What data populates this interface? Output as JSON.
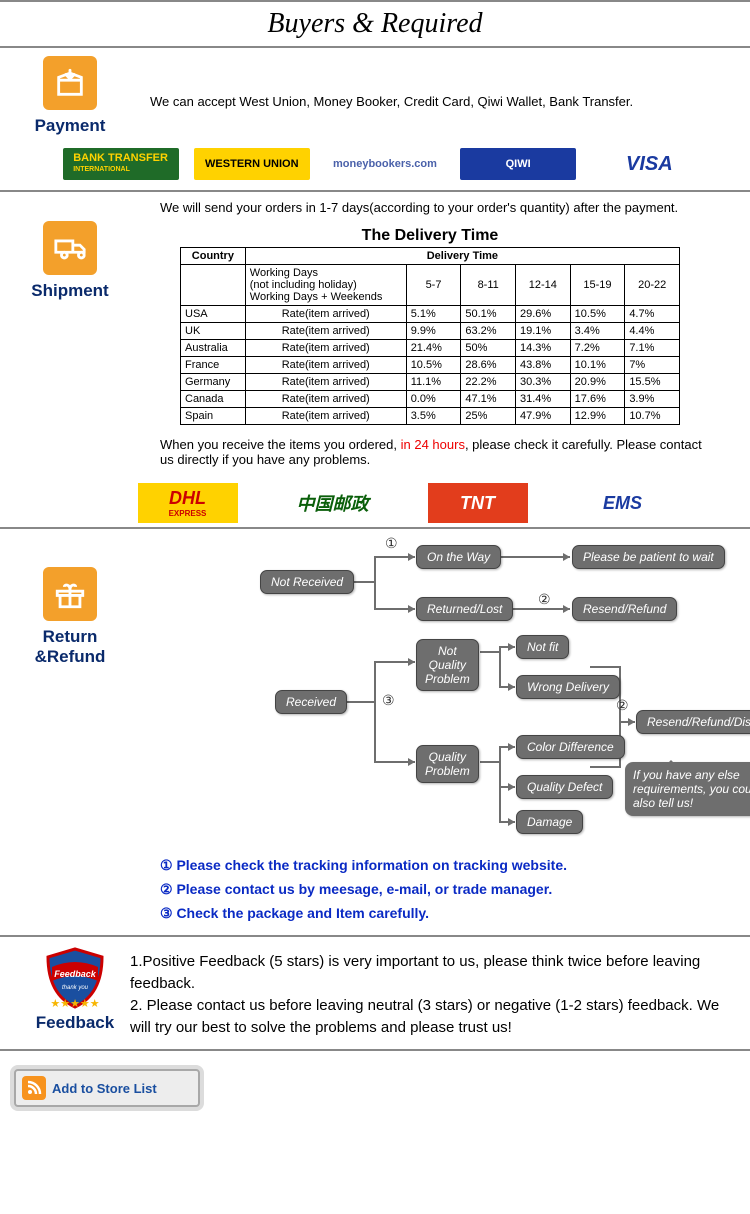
{
  "header": {
    "title": "Buyers & Required"
  },
  "payment": {
    "title": "Payment",
    "text": "We can accept West Union, Money Booker, Credit Card, Qiwi Wallet, Bank Transfer.",
    "logos": [
      {
        "label": "BANK TRANSFER",
        "sub": "INTERNATIONAL",
        "bg": "#1f6b28",
        "fg": "#ffd200"
      },
      {
        "label": "WESTERN UNION",
        "bg": "#ffd200",
        "fg": "#000"
      },
      {
        "label": "moneybookers.com",
        "bg": "#fff",
        "fg": "#4a61aa"
      },
      {
        "label": "QIWI",
        "bg": "#1a3aa0",
        "fg": "#fff"
      },
      {
        "label": "VISA",
        "bg": "#fff",
        "fg": "#1a3aa0"
      }
    ]
  },
  "shipment": {
    "title": "Shipment",
    "intro": "We will send your orders in 1-7 days(according to your order's quantity) after the payment.",
    "tableTitle": "The Delivery Time",
    "headers": {
      "country": "Country",
      "delivery": "Delivery Time"
    },
    "periodHeader": {
      "l1": "Working Days",
      "l2": "(not including holiday)",
      "l3": "Working Days + Weekends"
    },
    "periods": [
      "5-7",
      "8-11",
      "12-14",
      "15-19",
      "20-22"
    ],
    "rateLabel": "Rate(item arrived)",
    "rows": [
      {
        "country": "USA",
        "rates": [
          "5.1%",
          "50.1%",
          "29.6%",
          "10.5%",
          "4.7%"
        ]
      },
      {
        "country": "UK",
        "rates": [
          "9.9%",
          "63.2%",
          "19.1%",
          "3.4%",
          "4.4%"
        ]
      },
      {
        "country": "Australia",
        "rates": [
          "21.4%",
          "50%",
          "14.3%",
          "7.2%",
          "7.1%"
        ]
      },
      {
        "country": "France",
        "rates": [
          "10.5%",
          "28.6%",
          "43.8%",
          "10.1%",
          "7%"
        ]
      },
      {
        "country": "Germany",
        "rates": [
          "11.1%",
          "22.2%",
          "30.3%",
          "20.9%",
          "15.5%"
        ]
      },
      {
        "country": "Canada",
        "rates": [
          "0.0%",
          "47.1%",
          "31.4%",
          "17.6%",
          "3.9%"
        ]
      },
      {
        "country": "Spain",
        "rates": [
          "3.5%",
          "25%",
          "47.9%",
          "12.9%",
          "10.7%"
        ]
      }
    ],
    "note_before": "When you receive the items you ordered, ",
    "note_red": "in 24 hours",
    "note_after": ", please check it carefully. Please contact us directly if you have any problems.",
    "carriers": [
      {
        "label": "DHL",
        "sub": "EXPRESS",
        "bg": "#ffd200",
        "fg": "#c00"
      },
      {
        "label": "中国邮政",
        "bg": "#fff",
        "fg": "#0a5f0a"
      },
      {
        "label": "TNT",
        "bg": "#e23d1c",
        "fg": "#fff"
      },
      {
        "label": "EMS",
        "bg": "#fff",
        "fg": "#1a3aa0"
      }
    ]
  },
  "returns": {
    "title": "Return &Refund",
    "nodes": {
      "notReceived": "Not Received",
      "onTheWay": "On the Way",
      "returnedLost": "Returned/Lost",
      "patient": "Please be patient to wait",
      "resendRefund": "Resend/Refund",
      "received": "Received",
      "notQuality": "Not\nQuality\nProblem",
      "quality": "Quality\nProblem",
      "notFit": "Not fit",
      "wrongDelivery": "Wrong Delivery",
      "colorDiff": "Color Difference",
      "qualityDefect": "Quality Defect",
      "damage": "Damage",
      "resendRefundDiscount": "Resend/Refund/Discount",
      "speech": "If you have any else requirements, you could also tell us!"
    },
    "legend": [
      "① Please check the tracking information on tracking website.",
      "② Please contact us by meesage, e-mail, or trade manager.",
      "③ Check the package and Item carefully."
    ]
  },
  "feedback": {
    "title": "Feedback",
    "text1": "1.Positive Feedback (5 stars) is very important to us, please think twice before leaving feedback.",
    "text2": "2. Please contact us before leaving neutral (3 stars) or negative (1-2 stars) feedback. We will try our best to solve the problems and please trust us!"
  },
  "storeButton": "Add to Store List"
}
